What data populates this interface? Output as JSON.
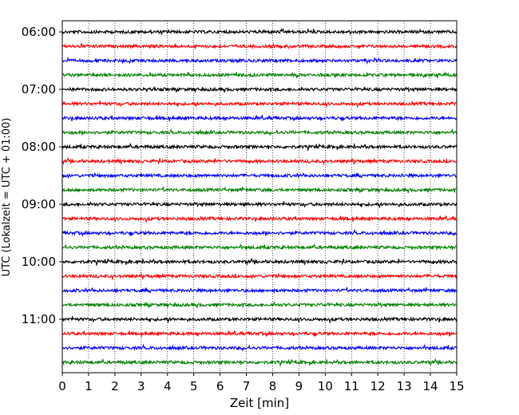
{
  "chart_data": {
    "type": "line",
    "title": "",
    "xlabel": "Zeit  [min]",
    "ylabel": "UTC (Lokalzeit = UTC + 01:00)",
    "xlim": [
      0,
      15
    ],
    "xticks": [
      0,
      1,
      2,
      3,
      4,
      5,
      6,
      7,
      8,
      9,
      10,
      11,
      12,
      13,
      14,
      15
    ],
    "xtick_labels": [
      "0",
      "1",
      "2",
      "3",
      "4",
      "5",
      "6",
      "7",
      "8",
      "9",
      "10",
      "11",
      "12",
      "13",
      "14",
      "15"
    ],
    "ytick_labels": [
      "06:00",
      "07:00",
      "08:00",
      "09:00",
      "10:00",
      "11:00"
    ],
    "ytick_trace_index": [
      0,
      4,
      8,
      12,
      16,
      20
    ],
    "trace_start_times": [
      "06:00",
      "06:15",
      "06:30",
      "06:45",
      "07:00",
      "07:15",
      "07:30",
      "07:45",
      "08:00",
      "08:15",
      "08:30",
      "08:45",
      "09:00",
      "09:15",
      "09:30",
      "09:45",
      "10:00",
      "10:15",
      "10:30",
      "10:45",
      "11:00",
      "11:15",
      "11:30",
      "11:45"
    ],
    "trace_minutes_per_line": 15,
    "color_cycle": [
      "#000000",
      "#ff0000",
      "#0000ff",
      "#008000"
    ],
    "x_grid": "dotted",
    "legend": "none"
  }
}
